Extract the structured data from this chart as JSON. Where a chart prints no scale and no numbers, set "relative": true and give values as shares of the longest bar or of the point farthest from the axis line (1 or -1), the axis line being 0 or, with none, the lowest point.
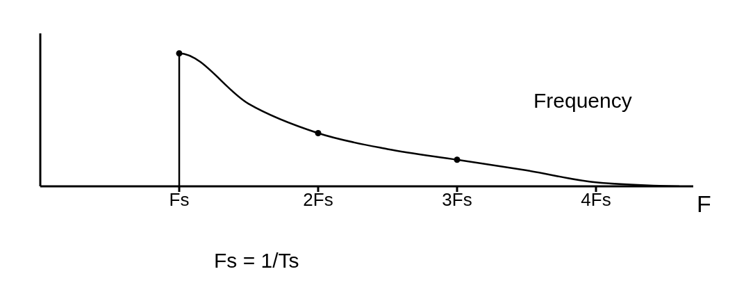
{
  "chart_data": {
    "type": "line",
    "relative": true,
    "xlabel": "F",
    "xlim": [
      0,
      4.7
    ],
    "xticks": [
      {
        "value": 1,
        "label": "Fs"
      },
      {
        "value": 2,
        "label": "2Fs"
      },
      {
        "value": 3,
        "label": "3Fs"
      },
      {
        "value": 4,
        "label": "4Fs"
      }
    ],
    "series": [
      {
        "color": "#000000",
        "x": [
          1,
          1,
          1.5,
          2,
          2.5,
          3,
          3.5,
          4,
          4.6
        ],
        "values": [
          0,
          1,
          0.62,
          0.4,
          0.28,
          0.2,
          0.12,
          0.03,
          0
        ]
      },
      {
        "type": "scatter",
        "color": "#000000",
        "x": [
          1,
          2,
          3
        ],
        "values": [
          1,
          0.4,
          0.2
        ]
      }
    ],
    "annotations": [
      "Frequency",
      "Fs = 1/Ts"
    ],
    "grid": false
  }
}
